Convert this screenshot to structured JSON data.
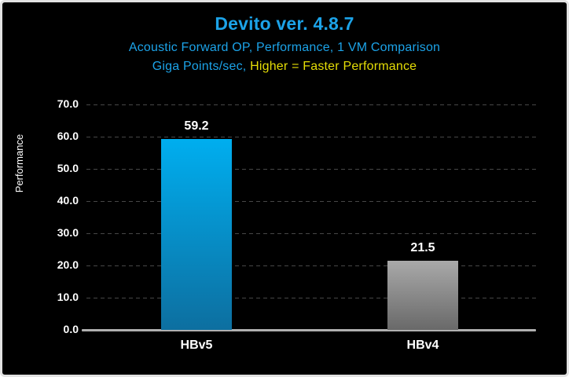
{
  "header": {
    "title": "Devito ver. 4.8.7",
    "subtitle_line1": "Acoustic Forward OP, Performance, 1 VM Comparison",
    "subtitle_line2_part1": "Giga Points/sec, ",
    "subtitle_line2_part2": "Higher = Faster Performance"
  },
  "colors": {
    "background": "#000000",
    "title_blue": "#1CA3E8",
    "highlight_yellow": "#E6DE06",
    "text_white": "#FFFFFF",
    "gridline": "#474747",
    "axis_line": "#B0B0B0"
  },
  "chart_data": {
    "type": "bar",
    "title": "Devito ver. 4.8.7",
    "subtitle": "Acoustic Forward OP, Performance, 1 VM Comparison — Giga Points/sec, Higher = Faster Performance",
    "categories": [
      "HBv5",
      "HBv4"
    ],
    "values": [
      59.2,
      21.5
    ],
    "value_labels": [
      "59.2",
      "21.5"
    ],
    "series_colors": [
      {
        "top": "#00AEEF",
        "bottom": "#0D6FA0"
      },
      {
        "top": "#A9A9A9",
        "bottom": "#696969"
      }
    ],
    "xlabel": "",
    "ylabel": "Performance",
    "ylim": [
      0,
      70
    ],
    "ytick_step": 10,
    "ytick_labels": [
      "0.0",
      "10.0",
      "20.0",
      "30.0",
      "40.0",
      "50.0",
      "60.0",
      "70.0"
    ],
    "grid": "horizontal-dashed",
    "legend_position": "none"
  }
}
